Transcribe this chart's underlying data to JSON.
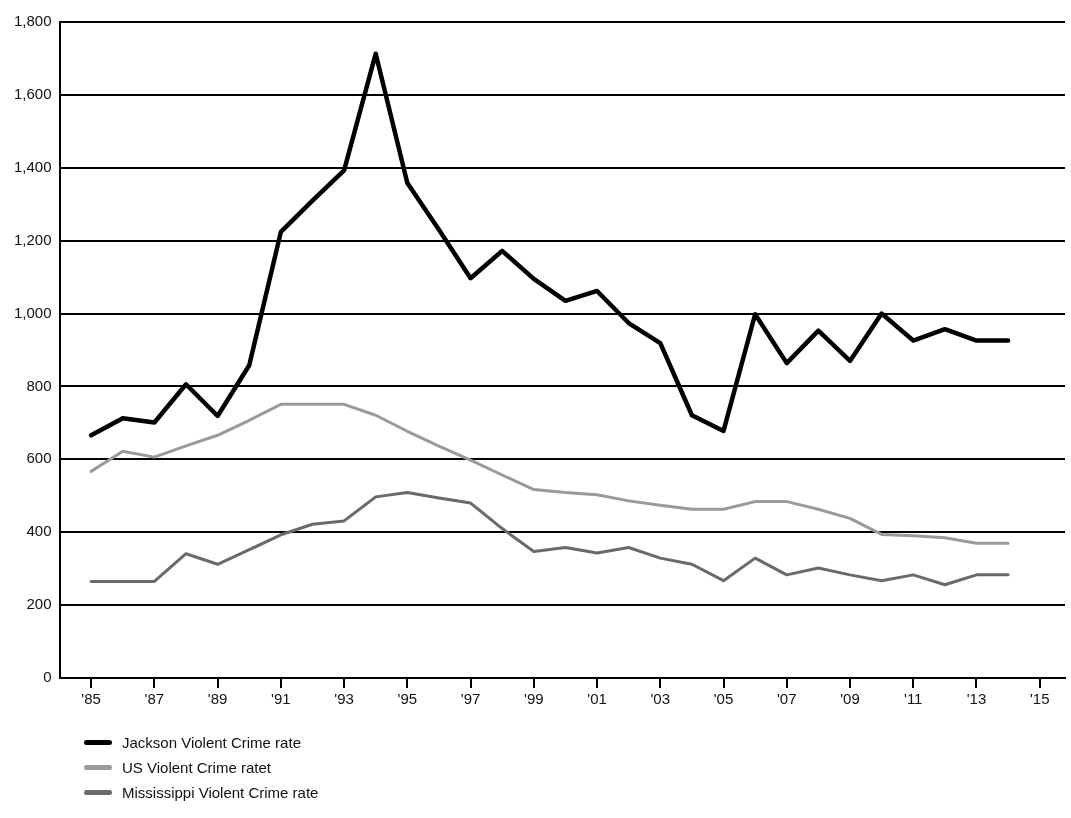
{
  "chart_data": {
    "type": "line",
    "x": [
      1985,
      1986,
      1987,
      1988,
      1989,
      1990,
      1991,
      1992,
      1993,
      1994,
      1995,
      1996,
      1997,
      1998,
      1999,
      2000,
      2001,
      2002,
      2003,
      2004,
      2005,
      2006,
      2007,
      2008,
      2009,
      2010,
      2011,
      2012,
      2013,
      2014
    ],
    "series": [
      {
        "name": "Jackson Violent Crime rate",
        "color": "#000000",
        "values": [
          666,
          713,
          701,
          806,
          719,
          858,
          1224,
          1310,
          1393,
          1713,
          1358,
          1230,
          1097,
          1172,
          1095,
          1035,
          1062,
          974,
          919,
          721,
          678,
          998,
          864,
          953,
          870,
          1000,
          926,
          957,
          926,
          926
        ]
      },
      {
        "name": "US Violent Crime ratet",
        "color": "#9a9a9a",
        "values": [
          567,
          622,
          606,
          637,
          666,
          707,
          751,
          751,
          751,
          721,
          677,
          636,
          598,
          557,
          517,
          509,
          503,
          486,
          474,
          463,
          463,
          484,
          484,
          463,
          438,
          394,
          390,
          385,
          370,
          370
        ]
      },
      {
        "name": "Mississippi Violent Crime rate",
        "color": "#6a6a6a",
        "values": [
          265,
          265,
          265,
          341,
          312,
          352,
          393,
          422,
          431,
          497,
          509,
          494,
          480,
          410,
          347,
          358,
          343,
          358,
          329,
          312,
          267,
          329,
          283,
          302,
          283,
          267,
          283,
          256,
          283,
          283
        ]
      }
    ],
    "xlim": [
      1984,
      2015.8
    ],
    "xticks": [
      {
        "value": 1985,
        "label": "'85"
      },
      {
        "value": 1987,
        "label": "'87"
      },
      {
        "value": 1989,
        "label": "'89"
      },
      {
        "value": 1991,
        "label": "'91"
      },
      {
        "value": 1993,
        "label": "'93"
      },
      {
        "value": 1995,
        "label": "'95"
      },
      {
        "value": 1997,
        "label": "'97"
      },
      {
        "value": 1999,
        "label": "'99"
      },
      {
        "value": 2001,
        "label": "'01"
      },
      {
        "value": 2003,
        "label": "'03"
      },
      {
        "value": 2005,
        "label": "'05"
      },
      {
        "value": 2007,
        "label": "'07"
      },
      {
        "value": 2009,
        "label": "'09"
      },
      {
        "value": 2011,
        "label": "'11"
      },
      {
        "value": 2013,
        "label": "'13"
      },
      {
        "value": 2015,
        "label": "'15"
      }
    ],
    "ylim": [
      0,
      1800
    ],
    "yticks": [
      0,
      200,
      400,
      600,
      800,
      {
        "value": 1000,
        "label": "1,000"
      },
      {
        "value": 1200,
        "label": "1,200"
      },
      {
        "value": 1400,
        "label": "1,400"
      },
      {
        "value": 1600,
        "label": "1,600"
      },
      {
        "value": 1800,
        "label": "1,800"
      }
    ],
    "grid": "y",
    "legend": "bottom left",
    "marker": "none",
    "line_style": "solid"
  }
}
